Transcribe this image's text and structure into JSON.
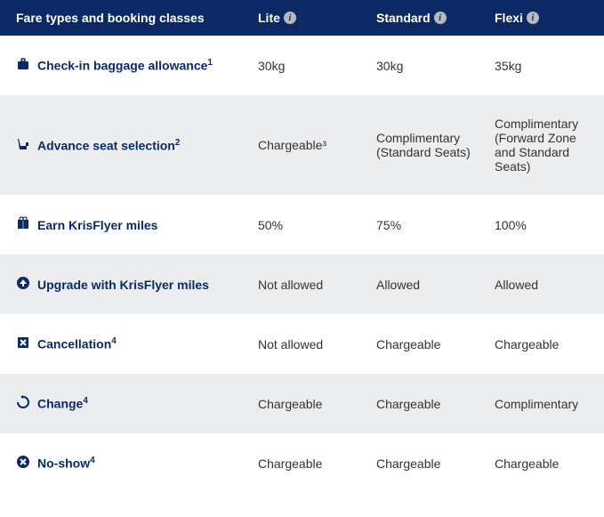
{
  "colors": {
    "header_bg": "#0b2a65",
    "header_text": "#ffffff",
    "label_text": "#0b2a65",
    "value_text": "#333333",
    "row_bg": "#ffffff",
    "row_alt_bg": "#ecedef",
    "info_icon_bg": "#b8b9bc"
  },
  "header": {
    "title": "Fare types and booking classes",
    "columns": [
      "Lite",
      "Standard",
      "Flexi"
    ]
  },
  "rows": [
    {
      "icon": "luggage",
      "label": "Check-in baggage allowance",
      "sup": "1",
      "alt": false,
      "values": [
        "30kg",
        "30kg",
        "35kg"
      ]
    },
    {
      "icon": "seat",
      "label": "Advance seat selection",
      "sup": "2",
      "alt": true,
      "values": [
        "Chargeable³",
        "Complimentary (Standard Seats)",
        "Complimentary (Forward Zone and Standard Seats)"
      ]
    },
    {
      "icon": "gift",
      "label": "Earn KrisFlyer miles",
      "sup": "",
      "alt": false,
      "values": [
        "50%",
        "75%",
        "100%"
      ]
    },
    {
      "icon": "upgrade",
      "label": "Upgrade with KrisFlyer miles",
      "sup": "",
      "alt": true,
      "values": [
        "Not allowed",
        "Allowed",
        "Allowed"
      ]
    },
    {
      "icon": "cancel",
      "label": "Cancellation",
      "sup": "4",
      "alt": false,
      "values": [
        "Not allowed",
        "Chargeable",
        "Chargeable"
      ]
    },
    {
      "icon": "change",
      "label": "Change",
      "sup": "4",
      "alt": true,
      "values": [
        "Chargeable",
        "Chargeable",
        "Complimentary"
      ]
    },
    {
      "icon": "noshow",
      "label": "No-show",
      "sup": "4",
      "alt": false,
      "values": [
        "Chargeable",
        "Chargeable",
        "Chargeable"
      ]
    }
  ]
}
